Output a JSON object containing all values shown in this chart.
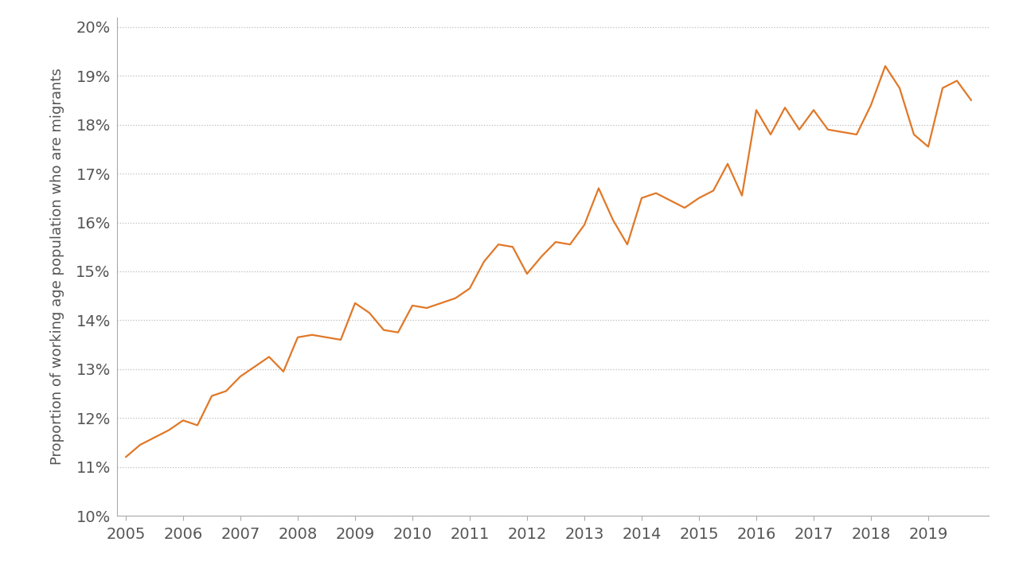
{
  "ylabel": "Proportion of working age population who are migrants",
  "line_color": "#E07828",
  "background_color": "#FFFFFF",
  "grid_color": "#BBBBBB",
  "x_values": [
    2005.0,
    2005.25,
    2005.5,
    2005.75,
    2006.0,
    2006.25,
    2006.5,
    2006.75,
    2007.0,
    2007.25,
    2007.5,
    2007.75,
    2008.0,
    2008.25,
    2008.5,
    2008.75,
    2009.0,
    2009.25,
    2009.5,
    2009.75,
    2010.0,
    2010.25,
    2010.5,
    2010.75,
    2011.0,
    2011.25,
    2011.5,
    2011.75,
    2012.0,
    2012.25,
    2012.5,
    2012.75,
    2013.0,
    2013.25,
    2013.5,
    2013.75,
    2014.0,
    2014.25,
    2014.5,
    2014.75,
    2015.0,
    2015.25,
    2015.5,
    2015.75,
    2016.0,
    2016.25,
    2016.5,
    2016.75,
    2017.0,
    2017.25,
    2017.5,
    2017.75,
    2018.0,
    2018.25,
    2018.5,
    2018.75,
    2019.0,
    2019.25,
    2019.5,
    2019.75
  ],
  "y_values": [
    0.112,
    0.1145,
    0.116,
    0.1175,
    0.1195,
    0.1185,
    0.1245,
    0.1255,
    0.1285,
    0.1305,
    0.1325,
    0.1295,
    0.1365,
    0.137,
    0.1365,
    0.136,
    0.1435,
    0.1415,
    0.138,
    0.1375,
    0.143,
    0.1425,
    0.1435,
    0.1445,
    0.1465,
    0.152,
    0.1555,
    0.155,
    0.1495,
    0.153,
    0.156,
    0.1555,
    0.1595,
    0.167,
    0.1605,
    0.1555,
    0.165,
    0.166,
    0.1645,
    0.163,
    0.165,
    0.1665,
    0.172,
    0.1655,
    0.183,
    0.178,
    0.1835,
    0.179,
    0.183,
    0.179,
    0.1785,
    0.178,
    0.184,
    0.192,
    0.1875,
    0.178,
    0.1755,
    0.1875,
    0.189,
    0.185
  ],
  "ylim": [
    0.1,
    0.202
  ],
  "xlim": [
    2004.85,
    2020.05
  ],
  "yticks": [
    0.1,
    0.11,
    0.12,
    0.13,
    0.14,
    0.15,
    0.16,
    0.17,
    0.18,
    0.19,
    0.2
  ],
  "xticks": [
    2005,
    2006,
    2007,
    2008,
    2009,
    2010,
    2011,
    2012,
    2013,
    2014,
    2015,
    2016,
    2017,
    2018,
    2019
  ],
  "line_width": 1.6,
  "tick_label_fontsize": 14,
  "axis_label_fontsize": 13,
  "spine_color": "#AAAAAA",
  "tick_color": "#888888",
  "label_color": "#555555"
}
